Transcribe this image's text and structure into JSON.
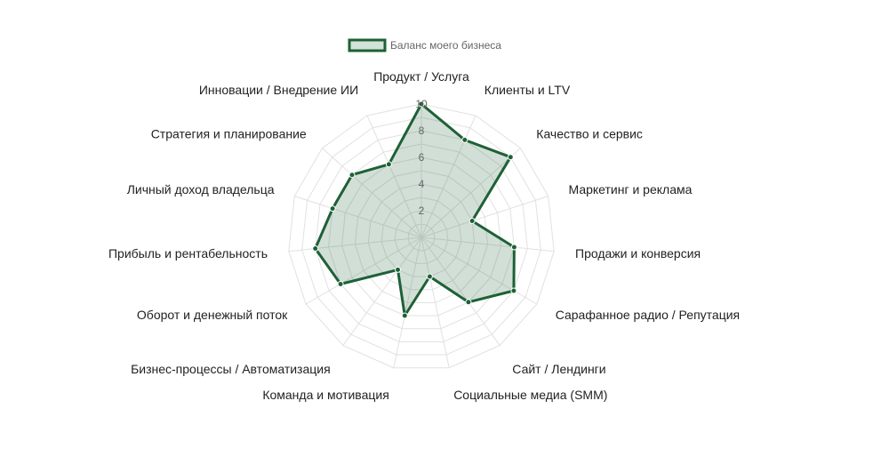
{
  "chart_data": {
    "type": "radar",
    "categories": [
      "Продукт / Услуга",
      "Клиенты и LTV",
      "Качество и сервис",
      "Маркетинг и реклама",
      "Продажи и конверсия",
      "Сарафанное радио / Репутация",
      "Сайт / Лендинги",
      "Социальные медиа (SMM)",
      "Команда и мотивация",
      "Бизнес-процессы / Автоматизация",
      "Оборот и денежный поток",
      "Прибыль и рентабельность",
      "Личный доход владельца",
      "Стратегия и планирование",
      "Инновации / Внедрение ИИ"
    ],
    "series": [
      {
        "name": "Баланс моего бизнеса",
        "values": [
          10,
          8,
          9,
          4,
          7,
          8,
          6,
          3,
          6,
          3,
          7,
          8,
          7,
          7,
          6
        ]
      }
    ],
    "rlim": [
      0,
      10
    ],
    "ticks": [
      "2",
      "4",
      "6",
      "8",
      "10"
    ],
    "grid": true,
    "legend_position": "top-center",
    "colors": {
      "line": "#1d6136",
      "fill": "rgba(29,97,54,0.2)",
      "grid": "#e1e1e1",
      "legend_fill": "#d3e3d8"
    }
  }
}
